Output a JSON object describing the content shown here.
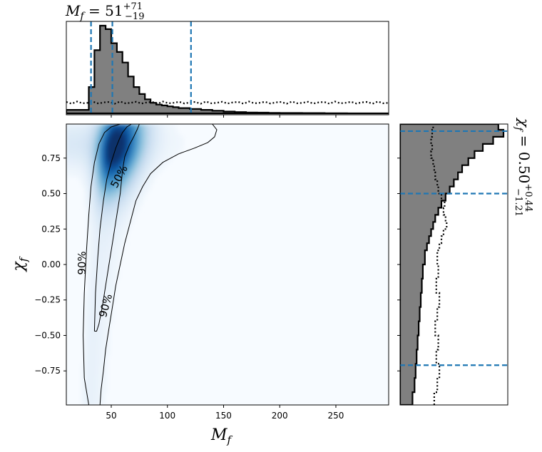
{
  "chart_data": [
    {
      "type": "heatmap",
      "panel": "joint",
      "xlabel": "M",
      "xlabel_sub": "f",
      "ylabel": "χ",
      "ylabel_sub": "f",
      "xlim": [
        10,
        297
      ],
      "ylim": [
        -0.99,
        0.99
      ],
      "xticks": [
        50,
        100,
        150,
        200,
        250
      ],
      "yticks": [
        0.75,
        0.5,
        0.25,
        0.0,
        -0.25,
        -0.5,
        -0.75
      ],
      "ytick_labels": [
        "0.75",
        "0.50",
        "0.25",
        "0.00",
        "−0.25",
        "−0.50",
        "−0.75"
      ],
      "colormap": "Blues",
      "density_peak": {
        "x": 57,
        "y": 0.75
      },
      "contours": [
        {
          "label": "50%",
          "level": 0.5,
          "path": [
            [
              35,
              -0.47
            ],
            [
              36,
              -0.2
            ],
            [
              38,
              0.05
            ],
            [
              40,
              0.25
            ],
            [
              43,
              0.45
            ],
            [
              46,
              0.6
            ],
            [
              50,
              0.72
            ],
            [
              54,
              0.82
            ],
            [
              57,
              0.88
            ],
            [
              60,
              0.93
            ],
            [
              64,
              0.97
            ],
            [
              68,
              0.99
            ],
            [
              75,
              0.99
            ],
            [
              73,
              0.95
            ],
            [
              70,
              0.9
            ],
            [
              66,
              0.84
            ],
            [
              62,
              0.76
            ],
            [
              60,
              0.66
            ],
            [
              58,
              0.5
            ],
            [
              54,
              0.3
            ],
            [
              51,
              0.15
            ],
            [
              48,
              0.0
            ],
            [
              45,
              -0.15
            ],
            [
              42,
              -0.3
            ],
            [
              39,
              -0.42
            ],
            [
              37,
              -0.47
            ],
            [
              35,
              -0.47
            ]
          ]
        },
        {
          "label": "90%",
          "level": 0.9,
          "path": [
            [
              30,
              -0.99
            ],
            [
              26,
              -0.8
            ],
            [
              25,
              -0.5
            ],
            [
              26,
              -0.2
            ],
            [
              28,
              0.1
            ],
            [
              30,
              0.35
            ],
            [
              32,
              0.55
            ],
            [
              35,
              0.72
            ],
            [
              39,
              0.85
            ],
            [
              44,
              0.93
            ],
            [
              50,
              0.97
            ],
            [
              58,
              0.99
            ],
            [
              140,
              0.99
            ],
            [
              144,
              0.95
            ],
            [
              142,
              0.9
            ],
            [
              136,
              0.86
            ],
            [
              124,
              0.82
            ],
            [
              110,
              0.78
            ],
            [
              96,
              0.72
            ],
            [
              85,
              0.64
            ],
            [
              78,
              0.55
            ],
            [
              72,
              0.45
            ],
            [
              67,
              0.3
            ],
            [
              62,
              0.15
            ],
            [
              58,
              0.0
            ],
            [
              54,
              -0.15
            ],
            [
              51,
              -0.3
            ],
            [
              48,
              -0.45
            ],
            [
              45,
              -0.6
            ],
            [
              43,
              -0.75
            ],
            [
              41,
              -0.88
            ],
            [
              40,
              -0.99
            ]
          ]
        }
      ],
      "contour_labels": [
        {
          "text": "50%",
          "x": 57,
          "y": 0.62
        },
        {
          "text": "90%",
          "x": 24,
          "y": 0.01
        },
        {
          "text": "90%",
          "x": 45,
          "y": -0.29
        }
      ]
    },
    {
      "type": "area",
      "panel": "top-marginal",
      "title_main": "M",
      "title_sub": "f",
      "title_value": " = 51",
      "title_sup": "+71",
      "title_low": "−19",
      "xlim": [
        10,
        297
      ],
      "bin_edges": [
        10,
        15,
        20,
        25,
        30,
        35,
        40,
        45,
        50,
        55,
        60,
        65,
        70,
        75,
        80,
        85,
        90,
        95,
        100,
        105,
        110,
        120,
        130,
        140,
        150,
        160,
        170,
        180,
        190,
        200,
        220,
        240,
        260,
        280,
        297
      ],
      "posterior": [
        0.04,
        0.04,
        0.04,
        0.04,
        0.3,
        0.72,
        1.0,
        0.96,
        0.8,
        0.7,
        0.58,
        0.42,
        0.3,
        0.22,
        0.16,
        0.12,
        0.1,
        0.09,
        0.08,
        0.07,
        0.06,
        0.05,
        0.04,
        0.03,
        0.02,
        0.015,
        0.01,
        0.008,
        0.006,
        0.004,
        0.003,
        0.002,
        0.0,
        0.0
      ],
      "prior_level": 0.12,
      "credible_lines": [
        32,
        51,
        121
      ],
      "colors": {
        "fill": "#808080",
        "outline": "#000000",
        "prior": "#000000",
        "credible": "#1f77b4"
      }
    },
    {
      "type": "area",
      "panel": "right-marginal",
      "annotation_main": "χ",
      "annotation_sub": "f",
      "annotation_value": " = 0.50",
      "annotation_sup": "+0.44",
      "annotation_low": "−1.21",
      "ylim": [
        -0.99,
        0.99
      ],
      "bin_edges": [
        -0.99,
        -0.9,
        -0.8,
        -0.7,
        -0.6,
        -0.5,
        -0.4,
        -0.3,
        -0.2,
        -0.1,
        0.0,
        0.1,
        0.15,
        0.2,
        0.25,
        0.3,
        0.35,
        0.4,
        0.45,
        0.5,
        0.55,
        0.6,
        0.65,
        0.7,
        0.75,
        0.8,
        0.85,
        0.9,
        0.95,
        0.99
      ],
      "posterior": [
        0.12,
        0.14,
        0.15,
        0.16,
        0.17,
        0.18,
        0.19,
        0.2,
        0.21,
        0.22,
        0.24,
        0.26,
        0.28,
        0.3,
        0.32,
        0.34,
        0.37,
        0.4,
        0.44,
        0.48,
        0.52,
        0.56,
        0.6,
        0.66,
        0.72,
        0.8,
        0.9,
        1.0,
        0.95
      ],
      "prior": [
        0.33,
        0.36,
        0.38,
        0.35,
        0.37,
        0.34,
        0.36,
        0.38,
        0.35,
        0.37,
        0.36,
        0.38,
        0.4,
        0.42,
        0.45,
        0.44,
        0.42,
        0.43,
        0.4,
        0.37,
        0.36,
        0.34,
        0.33,
        0.32,
        0.3,
        0.31,
        0.3,
        0.31,
        0.32
      ],
      "credible_lines": [
        -0.71,
        0.5,
        0.94
      ],
      "colors": {
        "fill": "#808080",
        "outline": "#000000",
        "prior": "#000000",
        "credible": "#1f77b4"
      }
    }
  ]
}
